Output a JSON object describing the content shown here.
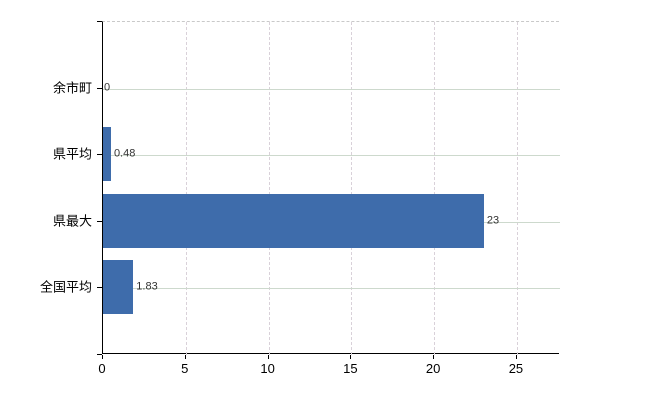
{
  "chart_data": {
    "type": "bar",
    "orientation": "horizontal",
    "title": "",
    "xlabel": "",
    "ylabel": "",
    "categories": [
      "余市町",
      "県平均",
      "県最大",
      "全国平均"
    ],
    "values": [
      0,
      0.48,
      23,
      1.83
    ],
    "value_labels": [
      "0",
      "0.48",
      "23",
      "1.83"
    ],
    "x_ticks": [
      {
        "value": 0,
        "label": "0"
      },
      {
        "value": 5,
        "label": "5"
      },
      {
        "value": 10,
        "label": "10"
      },
      {
        "value": 15,
        "label": "15"
      },
      {
        "value": 20,
        "label": "20"
      },
      {
        "value": 25,
        "label": "25"
      }
    ],
    "xlim": [
      0,
      27.6
    ],
    "grid": true,
    "legend": null,
    "colors": {
      "bar": "#3e6cab",
      "axis": "#000000",
      "grid_horizontal": "#cdd9cd",
      "grid_vertical": "#d9d1d9",
      "plot_top_border": "#c9c9c9",
      "value_label": "#333333",
      "tick_label": "#000000",
      "background": "#ffffff"
    }
  }
}
